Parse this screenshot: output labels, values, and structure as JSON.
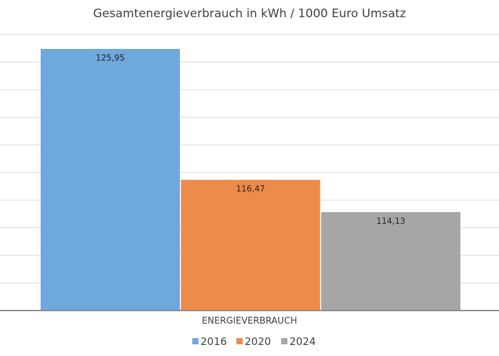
{
  "chart_data": {
    "type": "bar",
    "title": "Gesamtenergieverbrauch in kWh / 1000 Euro Umsatz",
    "categories": [
      "ENERGIEVERBRAUCH"
    ],
    "xlabel": "ENERGIEVERBRAUCH",
    "ylabel": "",
    "ylim": [
      107,
      127
    ],
    "grid": true,
    "legend_position": "bottom",
    "series": [
      {
        "name": "2016",
        "values": [
          125.95
        ],
        "label": "125,95",
        "color": "#6fa8dc"
      },
      {
        "name": "2020",
        "values": [
          116.47
        ],
        "label": "116,47",
        "color": "#ed8b4b"
      },
      {
        "name": "2024",
        "values": [
          114.13
        ],
        "label": "114,13",
        "color": "#a6a6a6"
      }
    ]
  }
}
